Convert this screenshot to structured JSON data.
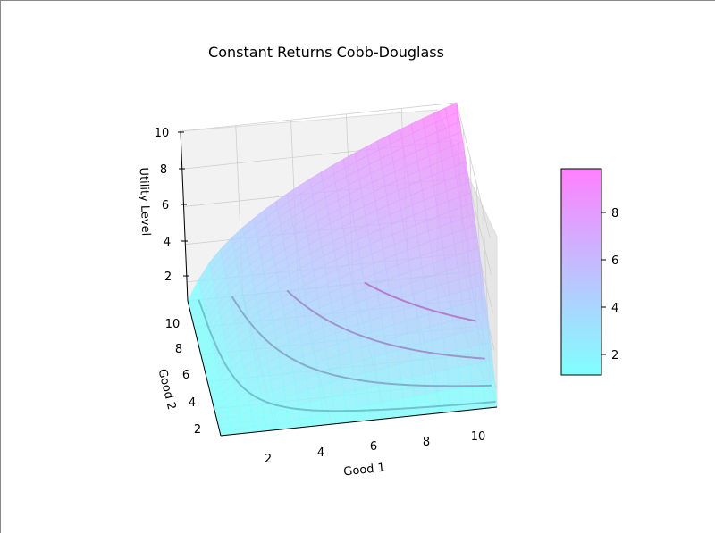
{
  "chart_data": {
    "type": "surface3d",
    "title": "Constant Returns Cobb-Douglass",
    "xlabel": "Good 1",
    "ylabel": "Good 2",
    "zlabel": "Utility Level",
    "function": "u = x^0.5 * y^0.5",
    "x_range": [
      0,
      10
    ],
    "y_range": [
      0,
      10
    ],
    "z_range": [
      1,
      10
    ],
    "x_ticks": [
      "2",
      "4",
      "6",
      "8",
      "10"
    ],
    "y_ticks": [
      "2",
      "4",
      "6",
      "8",
      "10"
    ],
    "z_ticks": [
      "2",
      "4",
      "6",
      "8",
      "10"
    ],
    "contour_levels": [
      2,
      4,
      6,
      8
    ],
    "colormap": "cool",
    "colormap_colors": [
      "#80ffff",
      "#ff80ff"
    ],
    "colorbar": {
      "range": [
        1.2,
        9.8
      ],
      "ticks": [
        "2",
        "4",
        "6",
        "8"
      ]
    },
    "grid": true
  }
}
